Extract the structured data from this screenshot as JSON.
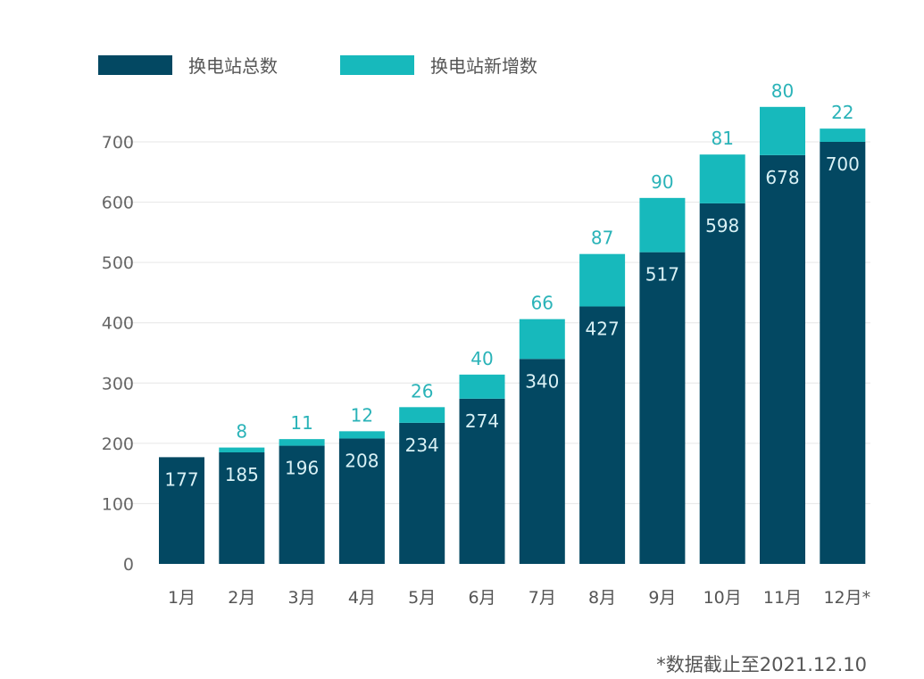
{
  "chart_data": {
    "type": "bar",
    "stacked": true,
    "categories": [
      "1月",
      "2月",
      "3月",
      "4月",
      "5月",
      "6月",
      "7月",
      "8月",
      "9月",
      "10月",
      "11月",
      "12月*"
    ],
    "series": [
      {
        "name": "换电站总数",
        "color": "#034862",
        "values": [
          177,
          185,
          196,
          208,
          234,
          274,
          340,
          427,
          517,
          598,
          678,
          700
        ]
      },
      {
        "name": "换电站新增数",
        "color": "#17b9bc",
        "values": [
          null,
          8,
          11,
          12,
          26,
          40,
          66,
          87,
          90,
          81,
          80,
          22
        ]
      }
    ],
    "yticks": [
      0,
      100,
      200,
      300,
      400,
      500,
      600,
      700
    ],
    "ylim": [
      0,
      760
    ],
    "grid": true,
    "legend": "top-left",
    "footnote": "*数据截止至2021.12.10"
  }
}
